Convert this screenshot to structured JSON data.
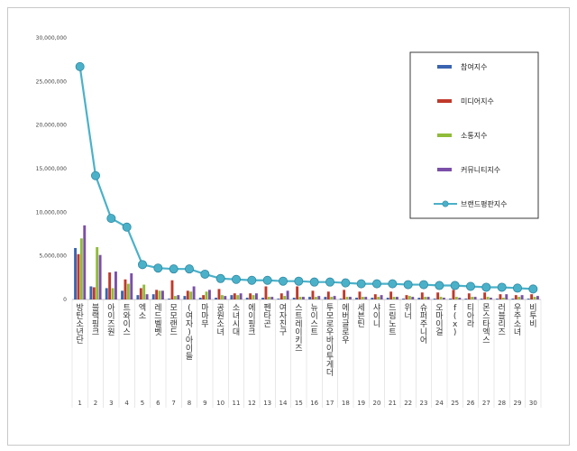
{
  "chart_data": {
    "type": "bar",
    "ylim": [
      0,
      30000000
    ],
    "y_ticks": [
      "30,000,000",
      "25,000,000",
      "20,000,000",
      "15,000,000",
      "10,000,000",
      "5,000,000",
      "0"
    ],
    "y_tick_values": [
      30000000,
      25000000,
      20000000,
      15000000,
      10000000,
      5000000,
      0
    ],
    "legend_position": "right",
    "categories": [
      "방탄소년단",
      "블랙핑크",
      "아이즈원",
      "트와이스",
      "엑소",
      "레드벨벳",
      "모모랜드",
      "(여자)아이들",
      "마마무",
      "공원소녀",
      "소녀시대",
      "에이핑크",
      "펜타곤",
      "여자친구",
      "스트레이키즈",
      "뉴이스트",
      "투모로우바이투게더",
      "에버글로우",
      "세븐틴",
      "샤이니",
      "드림노트",
      "위너",
      "슈퍼주니어",
      "오마이걸",
      "f(x)",
      "티아라",
      "몬스타엑스",
      "러블리즈",
      "우주소녀",
      "비투비"
    ],
    "ranks": [
      "1",
      "2",
      "3",
      "4",
      "5",
      "6",
      "7",
      "8",
      "9",
      "10",
      "11",
      "12",
      "13",
      "14",
      "15",
      "16",
      "17",
      "18",
      "19",
      "20",
      "21",
      "22",
      "23",
      "24",
      "25",
      "26",
      "27",
      "28",
      "29",
      "30"
    ],
    "series": [
      {
        "name": "참여지수",
        "color": "#3b64b0",
        "kind": "bar",
        "values": [
          5900000,
          1500000,
          1300000,
          1000000,
          500000,
          600000,
          100000,
          400000,
          200000,
          200000,
          500000,
          200000,
          200000,
          100000,
          200000,
          300000,
          300000,
          100000,
          200000,
          200000,
          200000,
          100000,
          200000,
          100000,
          100000,
          100000,
          100000,
          100000,
          100000,
          100000
        ]
      },
      {
        "name": "미디어지수",
        "color": "#c0392b",
        "kind": "bar",
        "values": [
          5200000,
          1400000,
          3100000,
          2300000,
          1300000,
          1100000,
          2200000,
          1000000,
          500000,
          1200000,
          700000,
          700000,
          1500000,
          700000,
          1500000,
          1000000,
          900000,
          1100000,
          900000,
          600000,
          900000,
          500000,
          800000,
          800000,
          1100000,
          700000,
          800000,
          600000,
          500000,
          600000
        ]
      },
      {
        "name": "소통지수",
        "color": "#8fbc3a",
        "kind": "bar",
        "values": [
          7000000,
          6000000,
          1300000,
          1800000,
          1700000,
          1000000,
          400000,
          900000,
          900000,
          500000,
          500000,
          500000,
          300000,
          400000,
          300000,
          300000,
          300000,
          300000,
          300000,
          300000,
          300000,
          400000,
          300000,
          300000,
          300000,
          300000,
          300000,
          200000,
          300000,
          300000
        ]
      },
      {
        "name": "커뮤니티지수",
        "color": "#7b4fa8",
        "kind": "bar",
        "values": [
          8500000,
          5100000,
          3200000,
          3000000,
          600000,
          1000000,
          500000,
          1500000,
          1100000,
          400000,
          700000,
          700000,
          300000,
          1000000,
          300000,
          400000,
          400000,
          300000,
          300000,
          500000,
          300000,
          300000,
          300000,
          200000,
          200000,
          300000,
          200000,
          600000,
          500000,
          400000
        ]
      },
      {
        "name": "브랜드평판지수",
        "color": "#4bb1c9",
        "kind": "line",
        "values": [
          26700000,
          14200000,
          9300000,
          8300000,
          4000000,
          3600000,
          3500000,
          3500000,
          2900000,
          2400000,
          2300000,
          2200000,
          2200000,
          2100000,
          2100000,
          2000000,
          2000000,
          1900000,
          1800000,
          1800000,
          1800000,
          1700000,
          1700000,
          1600000,
          1600000,
          1500000,
          1400000,
          1400000,
          1300000,
          1200000
        ]
      }
    ]
  }
}
